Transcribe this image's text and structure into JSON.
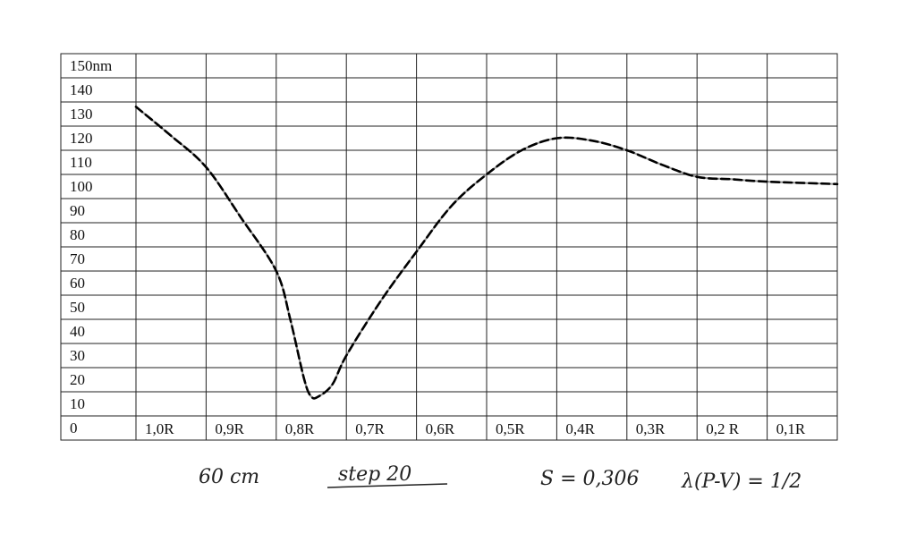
{
  "chart_data": {
    "type": "line",
    "title": "",
    "xlabel": "",
    "ylabel": "",
    "y_ticks": [
      "150nm",
      "140",
      "130",
      "120",
      "110",
      "100",
      "90",
      "80",
      "70",
      "60",
      "50",
      "40",
      "30",
      "20",
      "10",
      "0"
    ],
    "x_ticks": [
      "1,0R",
      "0,9R",
      "0,8R",
      "0,7R",
      "0,6R",
      "0,5R",
      "0,4R",
      "0,3R",
      "0,2 R",
      "0,1R"
    ],
    "ylim": [
      0,
      150
    ],
    "xlim": [
      1.0,
      0.0
    ],
    "grid": true,
    "series": [
      {
        "style": "solid",
        "color": "#9a9a9a",
        "x": [
          1.0,
          0.95,
          0.9,
          0.85,
          0.8,
          0.78,
          0.76,
          0.75,
          0.74,
          0.72,
          0.7,
          0.65,
          0.6,
          0.55,
          0.5,
          0.45,
          0.4,
          0.35,
          0.3,
          0.25,
          0.2,
          0.15,
          0.1,
          0.0
        ],
        "y": [
          128,
          116,
          103,
          82,
          60,
          40,
          15,
          8,
          8,
          13,
          25,
          48,
          68,
          87,
          100,
          110,
          115,
          114,
          110,
          104,
          99,
          98,
          97,
          96
        ]
      },
      {
        "style": "dashed",
        "color": "#000000",
        "x": [
          1.0,
          0.95,
          0.9,
          0.85,
          0.8,
          0.78,
          0.76,
          0.75,
          0.74,
          0.72,
          0.7,
          0.65,
          0.6,
          0.55,
          0.5,
          0.45,
          0.4,
          0.35,
          0.3,
          0.25,
          0.2,
          0.15,
          0.1,
          0.0
        ],
        "y": [
          128,
          116,
          103,
          82,
          60,
          40,
          15,
          8,
          8,
          13,
          25,
          48,
          68,
          87,
          100,
          110,
          115,
          114,
          110,
          104,
          99,
          98,
          97,
          96
        ]
      }
    ],
    "annotations": [
      "60 cm",
      "step 20",
      "S = 0,306",
      "λ(P-V) = 1/2"
    ]
  }
}
